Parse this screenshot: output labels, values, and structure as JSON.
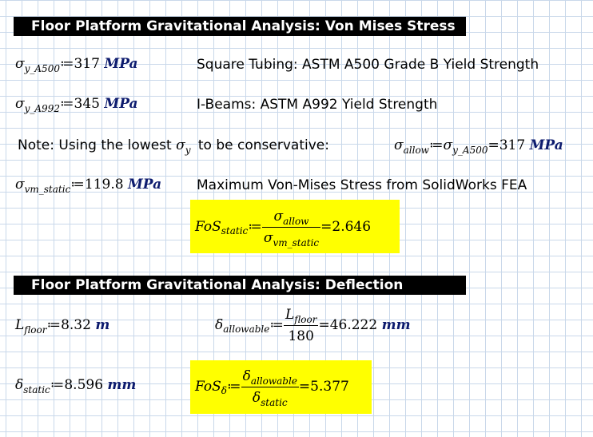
{
  "section1": {
    "title": "Floor Platform Gravitational Analysis: Von Mises Stress",
    "sy_a500": {
      "sym": "σ",
      "sub": "y_A500",
      "op": "≔",
      "value": "317",
      "unit": "MPa",
      "desc": "Square Tubing: ASTM A500 Grade B Yield Strength"
    },
    "sy_a992": {
      "sym": "σ",
      "sub": "y_A992",
      "op": "≔",
      "value": "345",
      "unit": "MPa",
      "desc": "I-Beams: ASTM A992 Yield Strength"
    },
    "note": {
      "text_before": "Note: Using the lowest",
      "sym": "σ",
      "sub": "y",
      "text_after": "to be conservative:"
    },
    "allow": {
      "sym": "σ",
      "sub": "allow",
      "op": "≔",
      "rhs_sym": "σ",
      "rhs_sub": "y_A500",
      "eq": "=",
      "value": "317",
      "unit": "MPa"
    },
    "vm_static": {
      "sym": "σ",
      "sub": "vm_static",
      "op": "≔",
      "value": "119.8",
      "unit": "MPa",
      "desc": "Maximum Von-Mises Stress from SolidWorks FEA"
    },
    "fos": {
      "lhs": "FoS",
      "lhs_sub": "static",
      "op": "≔",
      "num_sym": "σ",
      "num_sub": "allow",
      "den_sym": "σ",
      "den_sub": "vm_static",
      "eq": "=",
      "result": "2.646"
    }
  },
  "section2": {
    "title": "Floor Platform Gravitational Analysis: Deflection",
    "l_floor": {
      "sym": "L",
      "sub": "floor",
      "op": "≔",
      "value": "8.32",
      "unit": "m"
    },
    "d_allow": {
      "sym": "δ",
      "sub": "allowable",
      "op": "≔",
      "num_sym": "L",
      "num_sub": "floor",
      "den": "180",
      "eq": "=",
      "value": "46.222",
      "unit": "mm"
    },
    "d_static": {
      "sym": "δ",
      "sub": "static",
      "op": "≔",
      "value": "8.596",
      "unit": "mm"
    },
    "fos": {
      "lhs": "FoS",
      "lhs_sub": "δ",
      "op": "≔",
      "num_sym": "δ",
      "num_sub": "allowable",
      "den_sym": "δ",
      "den_sub": "static",
      "eq": "=",
      "result": "5.377"
    }
  },
  "colors": {
    "highlight": "#ffff00",
    "unit": "#0d1b6e",
    "header_bg": "#000000",
    "grid": "#c9d8ea"
  }
}
